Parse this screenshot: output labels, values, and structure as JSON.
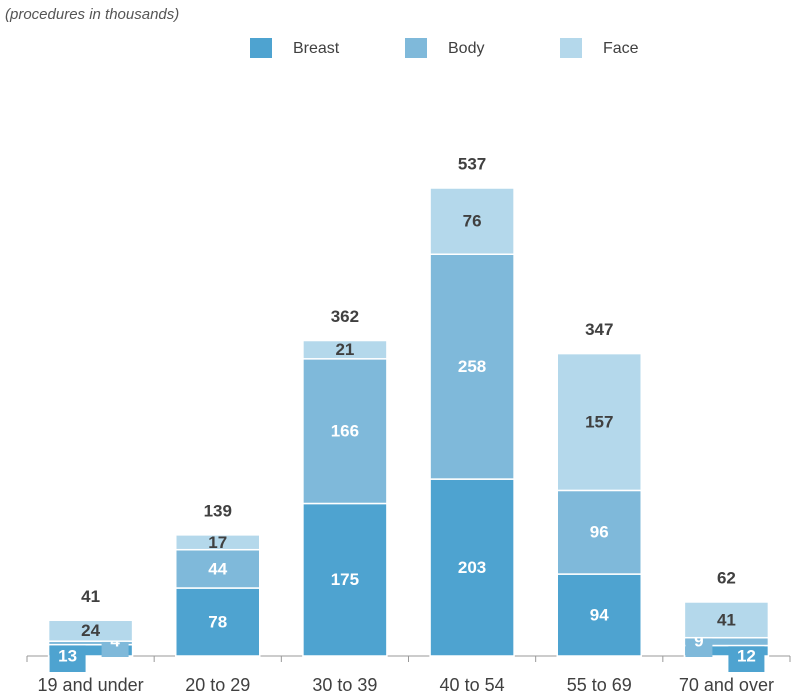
{
  "chart_data": {
    "type": "stacked_bar",
    "subtitle": "(procedures in thousands)",
    "categories": [
      "19 and under",
      "20 to 29",
      "30 to 39",
      "40 to 54",
      "55 to 69",
      "70 and over"
    ],
    "series": [
      {
        "name": "Breast",
        "color": "#4ea3d0",
        "values": [
          13,
          78,
          175,
          203,
          94,
          12
        ]
      },
      {
        "name": "Body",
        "color": "#7fb9da",
        "values": [
          4,
          44,
          166,
          258,
          96,
          9
        ]
      },
      {
        "name": "Face",
        "color": "#b4d8eb",
        "values": [
          24,
          17,
          21,
          76,
          157,
          41
        ]
      }
    ],
    "totals": [
      41,
      139,
      362,
      537,
      347,
      62
    ]
  }
}
